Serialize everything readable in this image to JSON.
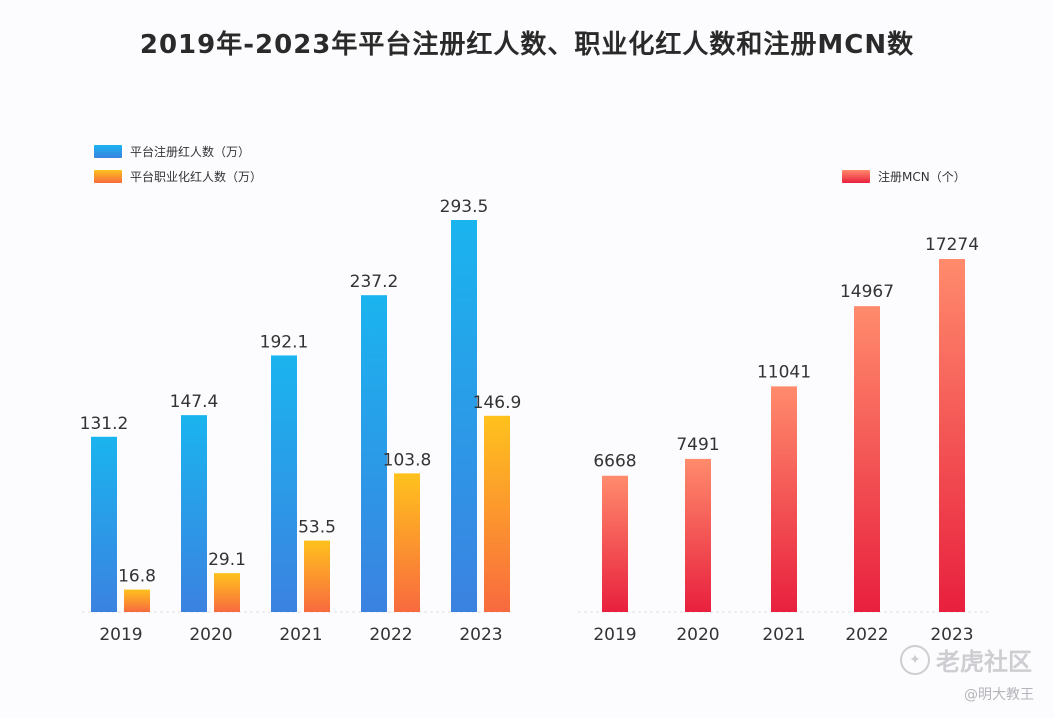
{
  "title": "2019年-2023年平台注册红人数、职业化红人数和注册MCN数",
  "legend": {
    "registered": "平台注册红人数（万）",
    "professional": "平台职业化红人数（万）",
    "mcn": "注册MCN（个）"
  },
  "colors": {
    "registered_top": "#1ab4ef",
    "registered_bottom": "#3b82e0",
    "professional_top": "#ffc21d",
    "professional_bottom": "#f86a3f",
    "mcn_top": "#ff8b6c",
    "mcn_bottom": "#e8203e"
  },
  "watermark": {
    "brand": "老虎社区",
    "author": "@明大教王"
  },
  "chart_data": [
    {
      "type": "bar",
      "categories": [
        "2019",
        "2020",
        "2021",
        "2022",
        "2023"
      ],
      "series": [
        {
          "name": "平台注册红人数（万）",
          "values": [
            131.2,
            147.4,
            192.1,
            237.2,
            293.5
          ]
        },
        {
          "name": "平台职业化红人数（万）",
          "values": [
            16.8,
            29.1,
            53.5,
            103.8,
            146.9
          ]
        }
      ],
      "value_labels": {
        "registered": [
          "131.2",
          "147.4",
          "192.1",
          "237.2",
          "293.5"
        ],
        "professional": [
          "16.8",
          "29.1",
          "53.5",
          "103.8",
          "146.9"
        ]
      },
      "ylim": [
        0,
        293.5
      ],
      "grid": false,
      "legend_position": "top-left"
    },
    {
      "type": "bar",
      "categories": [
        "2019",
        "2020",
        "2021",
        "2022",
        "2023"
      ],
      "series": [
        {
          "name": "注册MCN（个）",
          "values": [
            6668,
            7491,
            11041,
            14967,
            17274
          ]
        }
      ],
      "value_labels": [
        "6668",
        "7491",
        "11041",
        "14967",
        "17274"
      ],
      "ylim": [
        0,
        17274
      ],
      "grid": false,
      "legend_position": "top-right"
    }
  ]
}
